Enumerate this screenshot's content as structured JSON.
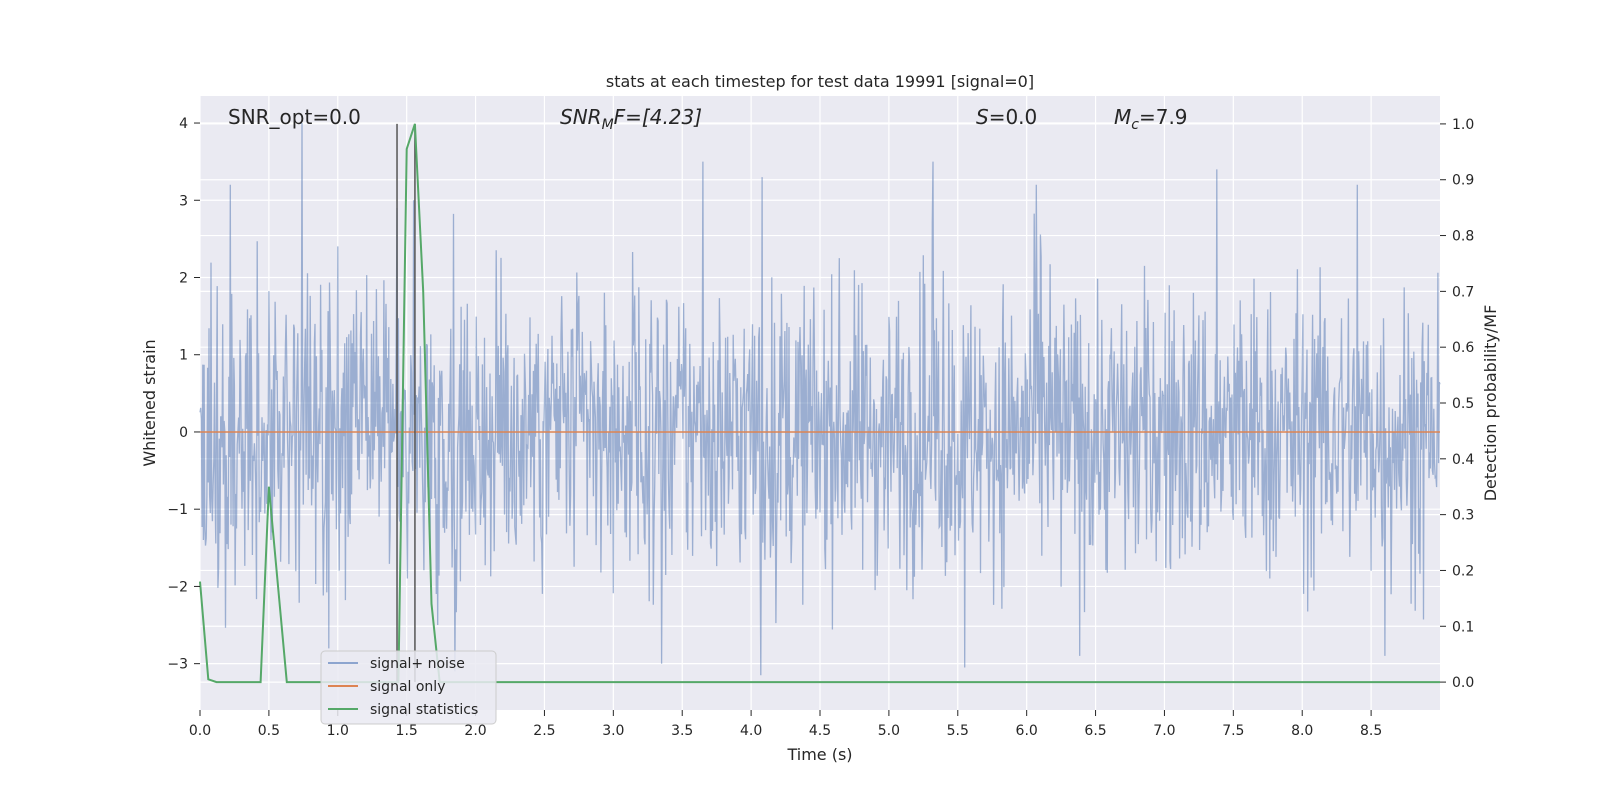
{
  "chart_data": {
    "type": "line",
    "title": "stats at each timestep for test data 19991 [signal=0]",
    "xlabel": "Time (s)",
    "ylabel": "Whitened strain",
    "y2label": "Detection probability/MF",
    "xlim": [
      0.0,
      9.0
    ],
    "ylim": [
      -3.6,
      4.35
    ],
    "y2lim": [
      -0.05,
      1.05
    ],
    "xticks": [
      "0.0",
      "0.5",
      "1.0",
      "1.5",
      "2.0",
      "2.5",
      "3.0",
      "3.5",
      "4.0",
      "4.5",
      "5.0",
      "5.5",
      "6.0",
      "6.5",
      "7.0",
      "7.5",
      "8.0",
      "8.5"
    ],
    "yticks": [
      "−3",
      "−2",
      "−1",
      "0",
      "1",
      "2",
      "3",
      "4"
    ],
    "y2ticks": [
      "0.0",
      "0.1",
      "0.2",
      "0.3",
      "0.4",
      "0.5",
      "0.6",
      "0.7",
      "0.8",
      "0.9",
      "1.0"
    ],
    "annotations": {
      "snr_opt": "SNR_opt=0.0",
      "snr_mf_base": "SNR",
      "snr_mf_sub": "M",
      "snr_mf_rest": "F=[4.23]",
      "s_base": "S",
      "s_rest": "=0.0",
      "mc_base": "M",
      "mc_sub": "c",
      "mc_rest": "=7.9"
    },
    "legend": {
      "placement": "lower-left",
      "entries": [
        "signal+ noise",
        "signal only",
        "signal statistics"
      ]
    },
    "series": [
      {
        "name": "signal+ noise",
        "axis": "left",
        "color": "#4c72b0",
        "description": "whitened noise band, roughly between -2 and 2 with spikes to about ±3.5",
        "peaks": [
          {
            "x": 0.22,
            "y": 3.2
          },
          {
            "x": 0.74,
            "y": 4.0
          },
          {
            "x": 1.43,
            "y": 2.9
          },
          {
            "x": 1.55,
            "y": 3.0
          },
          {
            "x": 3.65,
            "y": 3.5
          },
          {
            "x": 4.08,
            "y": 3.3
          },
          {
            "x": 5.32,
            "y": 3.5
          },
          {
            "x": 6.07,
            "y": 3.2
          },
          {
            "x": 7.38,
            "y": 3.4
          },
          {
            "x": 8.4,
            "y": 3.2
          }
        ],
        "troughs": [
          {
            "x": 4.07,
            "y": -3.15
          },
          {
            "x": 5.55,
            "y": -3.05
          },
          {
            "x": 3.35,
            "y": -3.0
          },
          {
            "x": 1.85,
            "y": -3.1
          },
          {
            "x": 8.6,
            "y": -2.9
          }
        ]
      },
      {
        "name": "signal only",
        "axis": "left",
        "color": "#dd8452",
        "x": [
          0.0,
          9.0
        ],
        "y": [
          0.0,
          0.0
        ]
      },
      {
        "name": "signal statistics",
        "axis": "right",
        "color": "#55a868",
        "x": [
          0.0,
          0.06,
          0.12,
          0.44,
          0.5,
          0.63,
          1.39,
          1.44,
          1.5,
          1.56,
          1.62,
          1.68,
          1.74,
          1.8,
          9.0
        ],
        "y": [
          0.18,
          0.005,
          0.0,
          0.0,
          0.35,
          0.0,
          0.0,
          0.0,
          0.955,
          1.0,
          0.7,
          0.14,
          0.0,
          0.0,
          0.0
        ]
      }
    ],
    "vlines": [
      1.43,
      1.56
    ]
  }
}
